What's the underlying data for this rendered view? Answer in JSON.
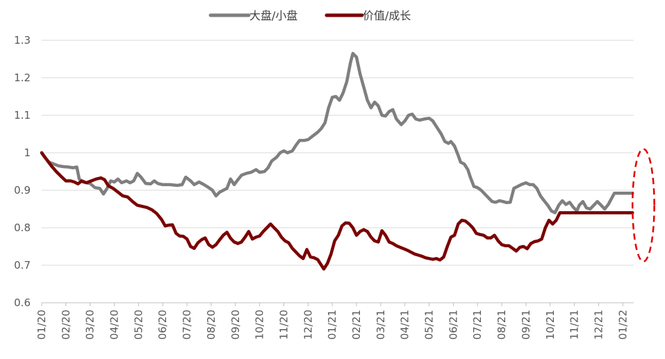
{
  "chart_data": {
    "type": "line",
    "title": "",
    "xlabel": "",
    "ylabel": "",
    "ylim": [
      0.6,
      1.3
    ],
    "yticks": [
      "1.3",
      "1.2",
      "1.1",
      "1",
      "0.9",
      "0.8",
      "0.7",
      "0.6"
    ],
    "xticks": [
      "01/20",
      "02/20",
      "03/20",
      "04/20",
      "05/20",
      "06/20",
      "07/20",
      "08/20",
      "09/20",
      "10/20",
      "11/20",
      "12/20",
      "01/21",
      "02/21",
      "03/21",
      "04/21",
      "05/21",
      "06/21",
      "07/21",
      "08/21",
      "09/21",
      "10/21",
      "11/21",
      "12/21",
      "01/22"
    ],
    "legend_position": "top-center",
    "grid": "horizontal",
    "highlight": {
      "type": "dashed-ellipse",
      "color": "#e00000",
      "x_range": [
        24.4,
        25.3
      ],
      "y_range": [
        0.71,
        1.01
      ]
    },
    "series": [
      {
        "name": "大盘/小盘",
        "color": "#7f7f7f",
        "points": [
          [
            0,
            1.0
          ],
          [
            0.1,
            0.99
          ],
          [
            0.3,
            0.975
          ],
          [
            0.5,
            0.97
          ],
          [
            0.7,
            0.965
          ],
          [
            0.9,
            0.963
          ],
          [
            1.1,
            0.962
          ],
          [
            1.3,
            0.96
          ],
          [
            1.45,
            0.962
          ],
          [
            1.55,
            0.93
          ],
          [
            1.7,
            0.922
          ],
          [
            2.0,
            0.918
          ],
          [
            2.2,
            0.907
          ],
          [
            2.4,
            0.905
          ],
          [
            2.55,
            0.89
          ],
          [
            2.7,
            0.905
          ],
          [
            2.85,
            0.925
          ],
          [
            3.0,
            0.922
          ],
          [
            3.15,
            0.93
          ],
          [
            3.3,
            0.92
          ],
          [
            3.5,
            0.925
          ],
          [
            3.65,
            0.92
          ],
          [
            3.8,
            0.925
          ],
          [
            3.95,
            0.945
          ],
          [
            4.1,
            0.935
          ],
          [
            4.3,
            0.918
          ],
          [
            4.5,
            0.917
          ],
          [
            4.65,
            0.925
          ],
          [
            4.8,
            0.918
          ],
          [
            5.0,
            0.915
          ],
          [
            5.3,
            0.915
          ],
          [
            5.6,
            0.913
          ],
          [
            5.8,
            0.915
          ],
          [
            5.95,
            0.935
          ],
          [
            6.15,
            0.925
          ],
          [
            6.3,
            0.915
          ],
          [
            6.5,
            0.922
          ],
          [
            6.7,
            0.915
          ],
          [
            6.9,
            0.907
          ],
          [
            7.05,
            0.9
          ],
          [
            7.2,
            0.885
          ],
          [
            7.35,
            0.895
          ],
          [
            7.5,
            0.9
          ],
          [
            7.65,
            0.905
          ],
          [
            7.8,
            0.93
          ],
          [
            7.95,
            0.915
          ],
          [
            8.1,
            0.928
          ],
          [
            8.25,
            0.94
          ],
          [
            8.45,
            0.945
          ],
          [
            8.65,
            0.948
          ],
          [
            8.85,
            0.955
          ],
          [
            9.0,
            0.948
          ],
          [
            9.2,
            0.95
          ],
          [
            9.35,
            0.96
          ],
          [
            9.5,
            0.978
          ],
          [
            9.7,
            0.988
          ],
          [
            9.85,
            1.0
          ],
          [
            10.0,
            1.005
          ],
          [
            10.15,
            1.0
          ],
          [
            10.35,
            1.005
          ],
          [
            10.5,
            1.02
          ],
          [
            10.65,
            1.033
          ],
          [
            10.85,
            1.033
          ],
          [
            11.0,
            1.035
          ],
          [
            11.2,
            1.045
          ],
          [
            11.4,
            1.055
          ],
          [
            11.55,
            1.065
          ],
          [
            11.7,
            1.08
          ],
          [
            11.85,
            1.12
          ],
          [
            12.0,
            1.148
          ],
          [
            12.15,
            1.15
          ],
          [
            12.3,
            1.14
          ],
          [
            12.45,
            1.16
          ],
          [
            12.6,
            1.19
          ],
          [
            12.75,
            1.24
          ],
          [
            12.85,
            1.265
          ],
          [
            13.0,
            1.255
          ],
          [
            13.15,
            1.21
          ],
          [
            13.3,
            1.175
          ],
          [
            13.45,
            1.14
          ],
          [
            13.6,
            1.12
          ],
          [
            13.75,
            1.135
          ],
          [
            13.9,
            1.125
          ],
          [
            14.05,
            1.1
          ],
          [
            14.2,
            1.098
          ],
          [
            14.35,
            1.11
          ],
          [
            14.5,
            1.115
          ],
          [
            14.65,
            1.09
          ],
          [
            14.85,
            1.075
          ],
          [
            15.0,
            1.085
          ],
          [
            15.15,
            1.1
          ],
          [
            15.3,
            1.103
          ],
          [
            15.45,
            1.09
          ],
          [
            15.6,
            1.087
          ],
          [
            15.8,
            1.09
          ],
          [
            16.0,
            1.092
          ],
          [
            16.15,
            1.085
          ],
          [
            16.3,
            1.07
          ],
          [
            16.5,
            1.05
          ],
          [
            16.65,
            1.03
          ],
          [
            16.8,
            1.025
          ],
          [
            16.9,
            1.03
          ],
          [
            17.05,
            1.018
          ],
          [
            17.2,
            0.993
          ],
          [
            17.3,
            0.975
          ],
          [
            17.45,
            0.97
          ],
          [
            17.6,
            0.955
          ],
          [
            17.7,
            0.935
          ],
          [
            17.85,
            0.91
          ],
          [
            18.0,
            0.907
          ],
          [
            18.15,
            0.9
          ],
          [
            18.3,
            0.89
          ],
          [
            18.45,
            0.88
          ],
          [
            18.6,
            0.87
          ],
          [
            18.75,
            0.868
          ],
          [
            18.9,
            0.872
          ],
          [
            19.05,
            0.87
          ],
          [
            19.2,
            0.867
          ],
          [
            19.35,
            0.868
          ],
          [
            19.5,
            0.905
          ],
          [
            19.65,
            0.91
          ],
          [
            19.8,
            0.915
          ],
          [
            20.0,
            0.92
          ],
          [
            20.15,
            0.915
          ],
          [
            20.3,
            0.915
          ],
          [
            20.45,
            0.905
          ],
          [
            20.6,
            0.885
          ],
          [
            20.75,
            0.872
          ],
          [
            20.9,
            0.86
          ],
          [
            21.05,
            0.845
          ],
          [
            21.2,
            0.84
          ],
          [
            21.35,
            0.86
          ],
          [
            21.5,
            0.872
          ],
          [
            21.65,
            0.862
          ],
          [
            21.8,
            0.868
          ],
          [
            21.95,
            0.855
          ],
          [
            22.1,
            0.845
          ],
          [
            22.2,
            0.86
          ],
          [
            22.35,
            0.87
          ],
          [
            22.5,
            0.853
          ],
          [
            22.65,
            0.85
          ],
          [
            22.8,
            0.86
          ],
          [
            22.95,
            0.87
          ],
          [
            23.1,
            0.86
          ],
          [
            23.25,
            0.85
          ],
          [
            23.4,
            0.862
          ],
          [
            23.55,
            0.88
          ],
          [
            23.65,
            0.892
          ],
          [
            24.4,
            0.892
          ]
        ]
      },
      {
        "name": "价值/成长",
        "color": "#7b0000",
        "points": [
          [
            0,
            1.0
          ],
          [
            0.2,
            0.982
          ],
          [
            0.4,
            0.965
          ],
          [
            0.6,
            0.95
          ],
          [
            0.8,
            0.937
          ],
          [
            1.0,
            0.925
          ],
          [
            1.2,
            0.925
          ],
          [
            1.35,
            0.922
          ],
          [
            1.5,
            0.917
          ],
          [
            1.65,
            0.925
          ],
          [
            1.85,
            0.92
          ],
          [
            2.05,
            0.925
          ],
          [
            2.25,
            0.93
          ],
          [
            2.45,
            0.933
          ],
          [
            2.6,
            0.928
          ],
          [
            2.75,
            0.912
          ],
          [
            2.95,
            0.905
          ],
          [
            3.15,
            0.895
          ],
          [
            3.35,
            0.885
          ],
          [
            3.55,
            0.882
          ],
          [
            3.75,
            0.87
          ],
          [
            3.95,
            0.86
          ],
          [
            4.15,
            0.857
          ],
          [
            4.35,
            0.854
          ],
          [
            4.55,
            0.848
          ],
          [
            4.75,
            0.838
          ],
          [
            4.95,
            0.822
          ],
          [
            5.1,
            0.805
          ],
          [
            5.25,
            0.807
          ],
          [
            5.4,
            0.808
          ],
          [
            5.55,
            0.785
          ],
          [
            5.7,
            0.778
          ],
          [
            5.85,
            0.777
          ],
          [
            6.0,
            0.77
          ],
          [
            6.15,
            0.75
          ],
          [
            6.3,
            0.745
          ],
          [
            6.45,
            0.76
          ],
          [
            6.6,
            0.768
          ],
          [
            6.75,
            0.773
          ],
          [
            6.9,
            0.755
          ],
          [
            7.05,
            0.748
          ],
          [
            7.2,
            0.755
          ],
          [
            7.35,
            0.768
          ],
          [
            7.5,
            0.78
          ],
          [
            7.65,
            0.788
          ],
          [
            7.8,
            0.772
          ],
          [
            7.95,
            0.762
          ],
          [
            8.1,
            0.758
          ],
          [
            8.25,
            0.762
          ],
          [
            8.4,
            0.775
          ],
          [
            8.55,
            0.79
          ],
          [
            8.7,
            0.77
          ],
          [
            8.85,
            0.775
          ],
          [
            9.0,
            0.778
          ],
          [
            9.15,
            0.79
          ],
          [
            9.3,
            0.8
          ],
          [
            9.45,
            0.81
          ],
          [
            9.6,
            0.8
          ],
          [
            9.75,
            0.79
          ],
          [
            9.9,
            0.775
          ],
          [
            10.05,
            0.765
          ],
          [
            10.2,
            0.76
          ],
          [
            10.35,
            0.745
          ],
          [
            10.5,
            0.735
          ],
          [
            10.65,
            0.725
          ],
          [
            10.8,
            0.718
          ],
          [
            10.95,
            0.742
          ],
          [
            11.1,
            0.722
          ],
          [
            11.25,
            0.72
          ],
          [
            11.4,
            0.715
          ],
          [
            11.55,
            0.7
          ],
          [
            11.65,
            0.69
          ],
          [
            11.8,
            0.705
          ],
          [
            11.95,
            0.73
          ],
          [
            12.1,
            0.765
          ],
          [
            12.25,
            0.78
          ],
          [
            12.4,
            0.805
          ],
          [
            12.55,
            0.813
          ],
          [
            12.7,
            0.812
          ],
          [
            12.85,
            0.8
          ],
          [
            13.0,
            0.78
          ],
          [
            13.15,
            0.79
          ],
          [
            13.3,
            0.795
          ],
          [
            13.45,
            0.79
          ],
          [
            13.6,
            0.775
          ],
          [
            13.75,
            0.765
          ],
          [
            13.9,
            0.762
          ],
          [
            14.05,
            0.792
          ],
          [
            14.2,
            0.78
          ],
          [
            14.35,
            0.762
          ],
          [
            14.5,
            0.758
          ],
          [
            14.65,
            0.752
          ],
          [
            14.8,
            0.748
          ],
          [
            14.95,
            0.744
          ],
          [
            15.1,
            0.74
          ],
          [
            15.25,
            0.735
          ],
          [
            15.4,
            0.73
          ],
          [
            15.55,
            0.727
          ],
          [
            15.7,
            0.724
          ],
          [
            15.85,
            0.72
          ],
          [
            16.0,
            0.718
          ],
          [
            16.15,
            0.716
          ],
          [
            16.3,
            0.718
          ],
          [
            16.45,
            0.714
          ],
          [
            16.6,
            0.722
          ],
          [
            16.75,
            0.75
          ],
          [
            16.9,
            0.775
          ],
          [
            17.05,
            0.78
          ],
          [
            17.2,
            0.81
          ],
          [
            17.35,
            0.82
          ],
          [
            17.5,
            0.818
          ],
          [
            17.65,
            0.81
          ],
          [
            17.8,
            0.8
          ],
          [
            17.95,
            0.785
          ],
          [
            18.1,
            0.782
          ],
          [
            18.25,
            0.78
          ],
          [
            18.4,
            0.773
          ],
          [
            18.55,
            0.773
          ],
          [
            18.7,
            0.78
          ],
          [
            18.85,
            0.765
          ],
          [
            19.0,
            0.755
          ],
          [
            19.15,
            0.752
          ],
          [
            19.3,
            0.752
          ],
          [
            19.45,
            0.745
          ],
          [
            19.6,
            0.738
          ],
          [
            19.75,
            0.748
          ],
          [
            19.9,
            0.75
          ],
          [
            20.05,
            0.744
          ],
          [
            20.2,
            0.758
          ],
          [
            20.35,
            0.763
          ],
          [
            20.5,
            0.765
          ],
          [
            20.65,
            0.77
          ],
          [
            20.8,
            0.8
          ],
          [
            20.95,
            0.82
          ],
          [
            21.1,
            0.81
          ],
          [
            21.25,
            0.82
          ],
          [
            21.4,
            0.84
          ],
          [
            24.4,
            0.84
          ]
        ]
      }
    ]
  }
}
